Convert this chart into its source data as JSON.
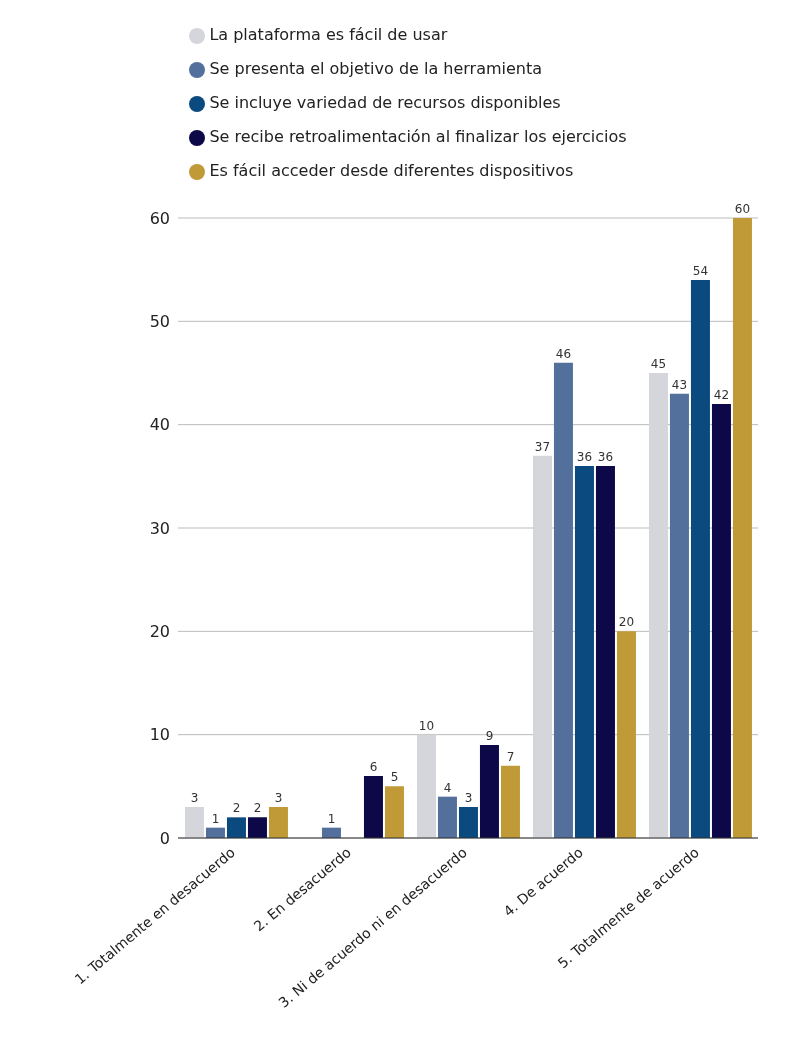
{
  "chart_data": {
    "type": "bar",
    "categories": [
      "1. Totalmente en desacuerdo",
      "2. En desacuerdo",
      "3. Ni de acuerdo ni en desacuerdo",
      "4. De acuerdo",
      "5. Totalmente de acuerdo"
    ],
    "series": [
      {
        "name": "La plataforma es fácil de usar",
        "color": "#d5d6dc",
        "values": [
          3,
          0,
          10,
          37,
          45
        ],
        "value_labels": [
          "3",
          null,
          "10",
          "37",
          "45"
        ]
      },
      {
        "name": "Se presenta el objetivo de la herramienta",
        "color": "#536f9c",
        "values": [
          1,
          1,
          4,
          46,
          43
        ],
        "value_labels": [
          "1",
          "1",
          "4",
          "46",
          "43"
        ]
      },
      {
        "name": "Se incluye variedad de recursos disponibles",
        "color": "#0b4a7e",
        "values": [
          2,
          0,
          3,
          36,
          54
        ],
        "value_labels": [
          "2",
          null,
          "3",
          "36",
          "54"
        ]
      },
      {
        "name": "Se recibe retroalimentación al finalizar los ejercicios",
        "color": "#0d0848",
        "values": [
          2,
          6,
          9,
          36,
          42
        ],
        "value_labels": [
          "2",
          "6",
          "9",
          "36",
          "42"
        ]
      },
      {
        "name": "Es fácil acceder desde diferentes dispositivos",
        "color": "#c09a37",
        "values": [
          3,
          5,
          7,
          20,
          60
        ],
        "value_labels": [
          "3",
          "5",
          "7",
          "20",
          "60"
        ]
      }
    ],
    "ylim": [
      0,
      60
    ],
    "yticks": [
      0,
      10,
      20,
      30,
      40,
      50,
      60
    ],
    "grid": "y",
    "legend": "top"
  }
}
